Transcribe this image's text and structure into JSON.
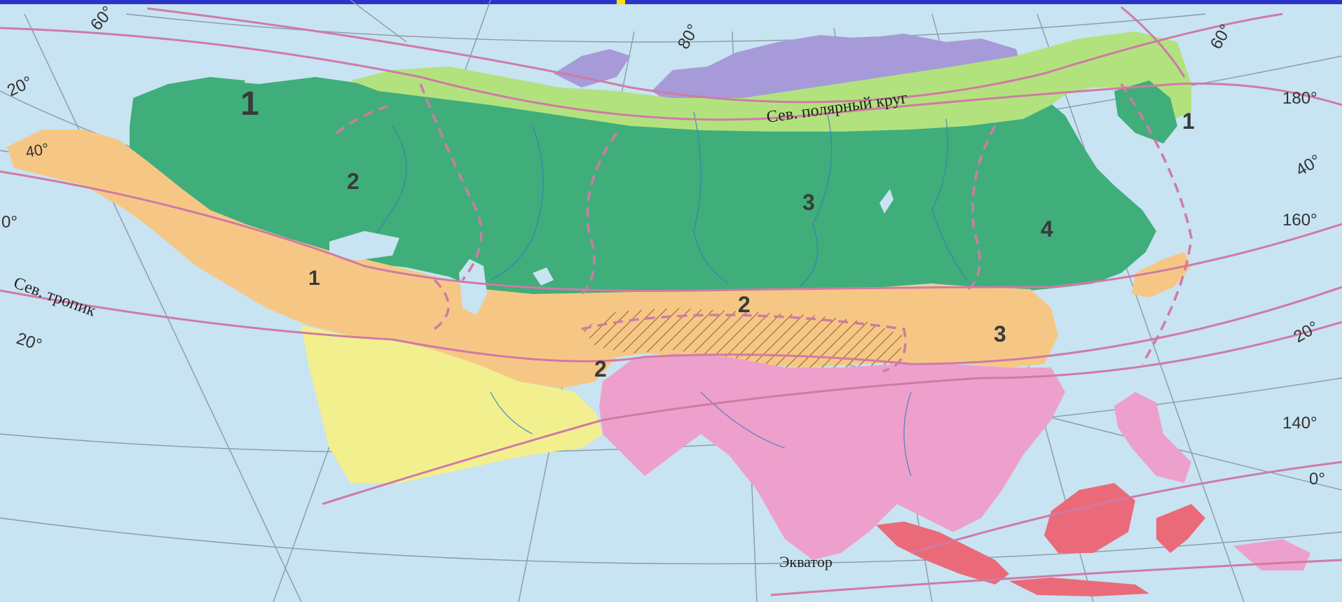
{
  "map": {
    "colors": {
      "ocean": "#c8e3f1",
      "graticule": "#8a9aa5",
      "arctic": "#b2e27e",
      "arctic_island": "#a79ad8",
      "temperate": "#3fae7a",
      "subtropical": "#f6c784",
      "tropical_dry": "#f2f08e",
      "subequatorial": "#eea0cc",
      "equatorial": "#ea6a7a",
      "boundary": "#d07aa6",
      "river": "#3d7ab8",
      "highland_hatch": "#8c5d3a",
      "top_bar": "#2a34c8",
      "top_bar_accent": "#ffe200"
    },
    "zone_numbers": [
      {
        "id": "arctic-west",
        "text": "1"
      },
      {
        "id": "arctic-east",
        "text": "1"
      },
      {
        "id": "subtropic-west",
        "text": "1"
      },
      {
        "id": "temperate-europe",
        "text": "2"
      },
      {
        "id": "temperate-siberia",
        "text": "3"
      },
      {
        "id": "temperate-fareast",
        "text": "4"
      },
      {
        "id": "subtropic-central",
        "text": "2"
      },
      {
        "id": "subtropic-iran",
        "text": "2"
      },
      {
        "id": "subtropic-east",
        "text": "3"
      }
    ],
    "line_labels": {
      "arctic_circle": "Сев. полярный круг",
      "tropic": "Сев. тропик",
      "equator": "Экватор"
    },
    "degree_labels": {
      "top_60_left": "60°",
      "top_80": "80°",
      "top_60_right": "60°",
      "left_20_top": "20°",
      "left_40": "40°",
      "left_0": "0°",
      "left_20_bottom": "20°",
      "right_180": "180°",
      "right_40": "40°",
      "right_160": "160°",
      "right_20": "20°",
      "right_140": "140°",
      "right_0": "0°"
    }
  }
}
